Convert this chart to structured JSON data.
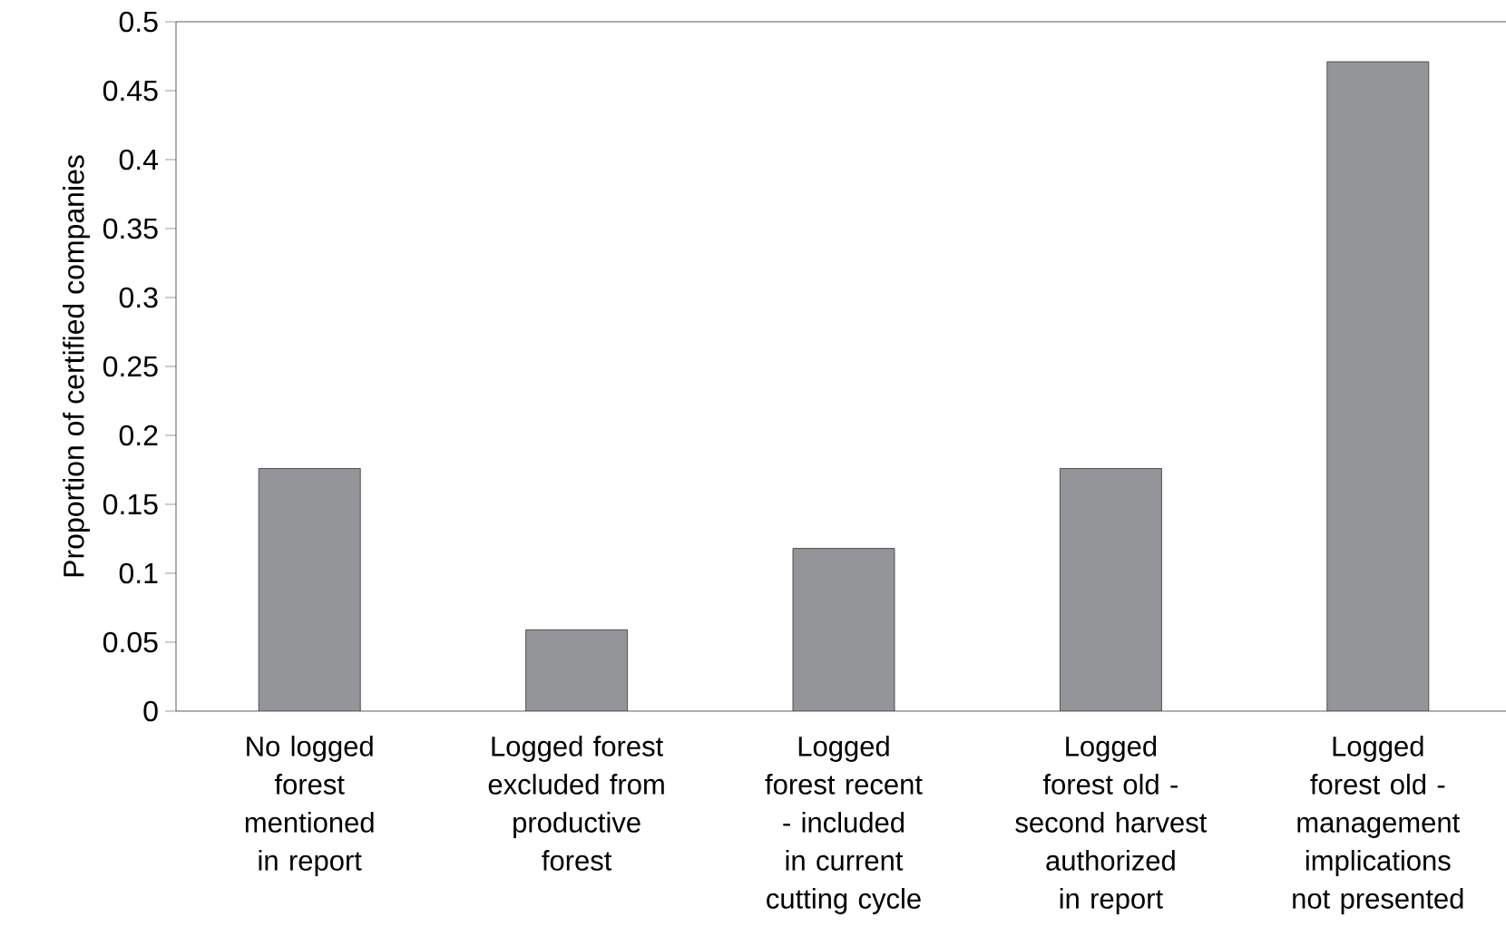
{
  "chart_data": {
    "type": "bar",
    "ylabel": "Proportion of certified companies",
    "categories": [
      "No logged forest mentioned in report",
      "Logged forest excluded from productive forest",
      "Logged forest recent - included in current cutting cycle",
      "Logged forest old - second harvest authorized in report",
      "Logged forest old - management implications not presented"
    ],
    "values": [
      0.176,
      0.059,
      0.118,
      0.176,
      0.471
    ],
    "color": "#939598",
    "ylim": [
      0,
      0.5
    ],
    "yticks": [
      0,
      0.05,
      0.1,
      0.15,
      0.2,
      0.25,
      0.3,
      0.35,
      0.4,
      0.45,
      0.5
    ],
    "grid": false
  }
}
